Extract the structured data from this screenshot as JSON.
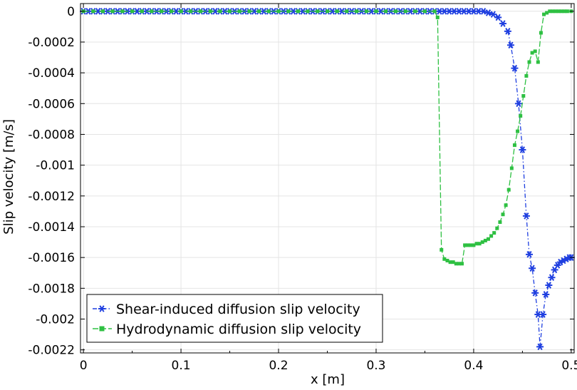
{
  "chart_data": {
    "type": "line",
    "title": "",
    "xlabel": "x [m]",
    "ylabel": "Slip velocity [m/s]",
    "xlim": [
      -0.003,
      0.503
    ],
    "ylim": [
      -0.00222,
      5e-05
    ],
    "grid": true,
    "legend_position": "bottom-left",
    "x_ticks": [
      "0",
      "0.1",
      "0.2",
      "0.3",
      "0.4",
      "0.5"
    ],
    "x_tick_values": [
      0,
      0.1,
      0.2,
      0.3,
      0.4,
      0.5
    ],
    "y_ticks": [
      "0",
      "-0.0002",
      "-0.0004",
      "-0.0006",
      "-0.0008",
      "-0.001",
      "-0.0012",
      "-0.0014",
      "-0.0016",
      "-0.0018",
      "-0.002",
      "-0.0022"
    ],
    "y_tick_values": [
      0,
      -0.0002,
      -0.0004,
      -0.0006,
      -0.0008,
      -0.001,
      -0.0012,
      -0.0014,
      -0.0016,
      -0.0018,
      -0.002,
      -0.0022
    ],
    "series": [
      {
        "name": "Shear-induced diffusion slip velocity",
        "color": "#1f3fe0",
        "marker": "asterisk",
        "line_style": "dash-dot",
        "x": [
          0,
          0.005,
          0.01,
          0.015,
          0.02,
          0.025,
          0.03,
          0.035,
          0.04,
          0.045,
          0.05,
          0.055,
          0.06,
          0.065,
          0.07,
          0.075,
          0.08,
          0.085,
          0.09,
          0.095,
          0.1,
          0.105,
          0.11,
          0.115,
          0.12,
          0.125,
          0.13,
          0.135,
          0.14,
          0.145,
          0.15,
          0.155,
          0.16,
          0.165,
          0.17,
          0.175,
          0.18,
          0.185,
          0.19,
          0.195,
          0.2,
          0.205,
          0.21,
          0.215,
          0.22,
          0.225,
          0.23,
          0.235,
          0.24,
          0.245,
          0.25,
          0.255,
          0.26,
          0.265,
          0.27,
          0.275,
          0.28,
          0.285,
          0.29,
          0.295,
          0.3,
          0.305,
          0.31,
          0.315,
          0.32,
          0.325,
          0.33,
          0.335,
          0.34,
          0.345,
          0.35,
          0.355,
          0.36,
          0.365,
          0.37,
          0.375,
          0.38,
          0.385,
          0.39,
          0.395,
          0.4,
          0.405,
          0.41,
          0.415,
          0.42,
          0.425,
          0.43,
          0.435,
          0.438,
          0.442,
          0.446,
          0.45,
          0.454,
          0.457,
          0.46,
          0.463,
          0.466,
          0.468,
          0.471,
          0.474,
          0.477,
          0.48,
          0.483,
          0.486,
          0.489,
          0.492,
          0.495,
          0.498,
          0.5
        ],
        "y": [
          0,
          0,
          0,
          0,
          0,
          0,
          0,
          0,
          0,
          0,
          0,
          0,
          0,
          0,
          0,
          0,
          0,
          0,
          0,
          0,
          0,
          0,
          0,
          0,
          0,
          0,
          0,
          0,
          0,
          0,
          0,
          0,
          0,
          0,
          0,
          0,
          0,
          0,
          0,
          0,
          0,
          0,
          0,
          0,
          0,
          0,
          0,
          0,
          0,
          0,
          0,
          0,
          0,
          0,
          0,
          0,
          0,
          0,
          0,
          0,
          0,
          0,
          0,
          0,
          0,
          0,
          0,
          0,
          0,
          0,
          0,
          0,
          0,
          0,
          0,
          0,
          0,
          0,
          0,
          0,
          0,
          0,
          0,
          -1e-05,
          -2e-05,
          -4e-05,
          -8e-05,
          -0.00013,
          -0.00022,
          -0.00037,
          -0.0006,
          -0.0009,
          -0.00133,
          -0.00158,
          -0.00167,
          -0.00183,
          -0.00197,
          -0.00218,
          -0.00197,
          -0.00184,
          -0.00178,
          -0.00173,
          -0.00168,
          -0.00165,
          -0.00163,
          -0.00162,
          -0.00161,
          -0.0016,
          -0.0016
        ]
      },
      {
        "name": "Hydrodynamic diffusion slip velocity",
        "color": "#2ec042",
        "marker": "square",
        "line_style": "dash",
        "x": [
          0,
          0.01,
          0.02,
          0.03,
          0.04,
          0.05,
          0.06,
          0.07,
          0.08,
          0.09,
          0.1,
          0.11,
          0.12,
          0.13,
          0.14,
          0.15,
          0.16,
          0.17,
          0.18,
          0.19,
          0.2,
          0.21,
          0.22,
          0.23,
          0.24,
          0.25,
          0.26,
          0.27,
          0.28,
          0.29,
          0.3,
          0.31,
          0.32,
          0.33,
          0.34,
          0.35,
          0.36,
          0.363,
          0.367,
          0.37,
          0.373,
          0.376,
          0.379,
          0.382,
          0.385,
          0.388,
          0.391,
          0.394,
          0.397,
          0.4,
          0.403,
          0.406,
          0.409,
          0.412,
          0.415,
          0.418,
          0.421,
          0.424,
          0.427,
          0.43,
          0.433,
          0.436,
          0.439,
          0.442,
          0.445,
          0.448,
          0.451,
          0.454,
          0.457,
          0.46,
          0.463,
          0.466,
          0.469,
          0.472,
          0.475,
          0.478,
          0.481,
          0.484,
          0.487,
          0.49,
          0.493,
          0.496,
          0.5
        ],
        "y": [
          0,
          0,
          0,
          0,
          0,
          0,
          0,
          0,
          0,
          0,
          0,
          0,
          0,
          0,
          0,
          0,
          0,
          0,
          0,
          0,
          0,
          0,
          0,
          0,
          0,
          0,
          0,
          0,
          0,
          0,
          0,
          0,
          0,
          0,
          0,
          0,
          0,
          -4e-05,
          -0.00155,
          -0.00161,
          -0.00162,
          -0.00163,
          -0.00163,
          -0.00164,
          -0.00164,
          -0.00164,
          -0.00152,
          -0.00152,
          -0.00152,
          -0.00152,
          -0.00151,
          -0.00151,
          -0.0015,
          -0.00149,
          -0.00148,
          -0.00146,
          -0.00144,
          -0.00141,
          -0.00137,
          -0.00132,
          -0.00126,
          -0.00116,
          -0.00102,
          -0.00087,
          -0.00078,
          -0.00068,
          -0.00055,
          -0.00042,
          -0.00033,
          -0.00027,
          -0.00026,
          -0.00033,
          -0.00014,
          -2e-05,
          -1e-05,
          0,
          0,
          0,
          0,
          0,
          0,
          0,
          0
        ]
      }
    ]
  }
}
